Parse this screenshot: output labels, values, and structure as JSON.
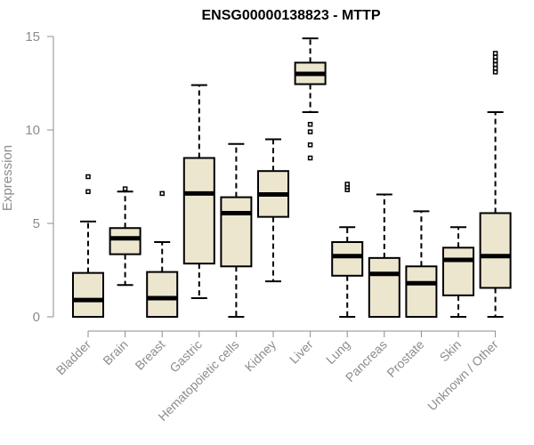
{
  "chart_data": {
    "type": "boxplot",
    "title": "ENSG00000138823 - MTTP",
    "xlabel": "",
    "ylabel": "Expression",
    "ylim": [
      0,
      15
    ],
    "yticks": [
      0,
      5,
      10,
      15
    ],
    "colors": {
      "box_fill": "#ede6cf",
      "axis": "#8c8c8c"
    },
    "categories": [
      "Bladder",
      "Brain",
      "Breast",
      "Gastric",
      "Hematopoietic cells",
      "Kidney",
      "Liver",
      "Lung",
      "Pancreas",
      "Prostate",
      "Skin",
      "Unknown / Other"
    ],
    "boxes": [
      {
        "name": "Bladder",
        "whisker_low": 0,
        "q1": 0,
        "median": 0.9,
        "q3": 2.35,
        "whisker_high": 5.1,
        "outliers": [
          6.7,
          7.5
        ]
      },
      {
        "name": "Brain",
        "whisker_low": 1.7,
        "q1": 3.35,
        "median": 4.2,
        "q3": 4.75,
        "whisker_high": 6.7,
        "outliers": [
          6.85
        ]
      },
      {
        "name": "Breast",
        "whisker_low": 0,
        "q1": 0,
        "median": 1.0,
        "q3": 2.4,
        "whisker_high": 4.0,
        "outliers": [
          6.6
        ]
      },
      {
        "name": "Gastric",
        "whisker_low": 1.0,
        "q1": 2.85,
        "median": 6.6,
        "q3": 8.5,
        "whisker_high": 12.4,
        "outliers": []
      },
      {
        "name": "Hematopoietic cells",
        "whisker_low": 0,
        "q1": 2.7,
        "median": 5.55,
        "q3": 6.4,
        "whisker_high": 9.25,
        "outliers": []
      },
      {
        "name": "Kidney",
        "whisker_low": 1.9,
        "q1": 5.35,
        "median": 6.55,
        "q3": 7.8,
        "whisker_high": 9.5,
        "outliers": []
      },
      {
        "name": "Liver",
        "whisker_low": 10.95,
        "q1": 12.45,
        "median": 13.0,
        "q3": 13.6,
        "whisker_high": 14.9,
        "outliers": [
          8.5,
          9.2,
          9.9,
          10.3
        ]
      },
      {
        "name": "Lung",
        "whisker_low": 0,
        "q1": 2.2,
        "median": 3.25,
        "q3": 4.0,
        "whisker_high": 4.8,
        "outliers": [
          6.8,
          6.95,
          7.1
        ]
      },
      {
        "name": "Pancreas",
        "whisker_low": 0,
        "q1": 0,
        "median": 2.3,
        "q3": 3.15,
        "whisker_high": 6.55,
        "outliers": []
      },
      {
        "name": "Prostate",
        "whisker_low": 0,
        "q1": 0,
        "median": 1.8,
        "q3": 2.7,
        "whisker_high": 5.65,
        "outliers": []
      },
      {
        "name": "Skin",
        "whisker_low": 0,
        "q1": 1.15,
        "median": 3.05,
        "q3": 3.7,
        "whisker_high": 4.8,
        "outliers": []
      },
      {
        "name": "Unknown / Other",
        "whisker_low": 0,
        "q1": 1.55,
        "median": 3.25,
        "q3": 5.55,
        "whisker_high": 10.95,
        "outliers": [
          13.1,
          13.3,
          13.5,
          13.7,
          13.9,
          14.1
        ]
      }
    ]
  }
}
